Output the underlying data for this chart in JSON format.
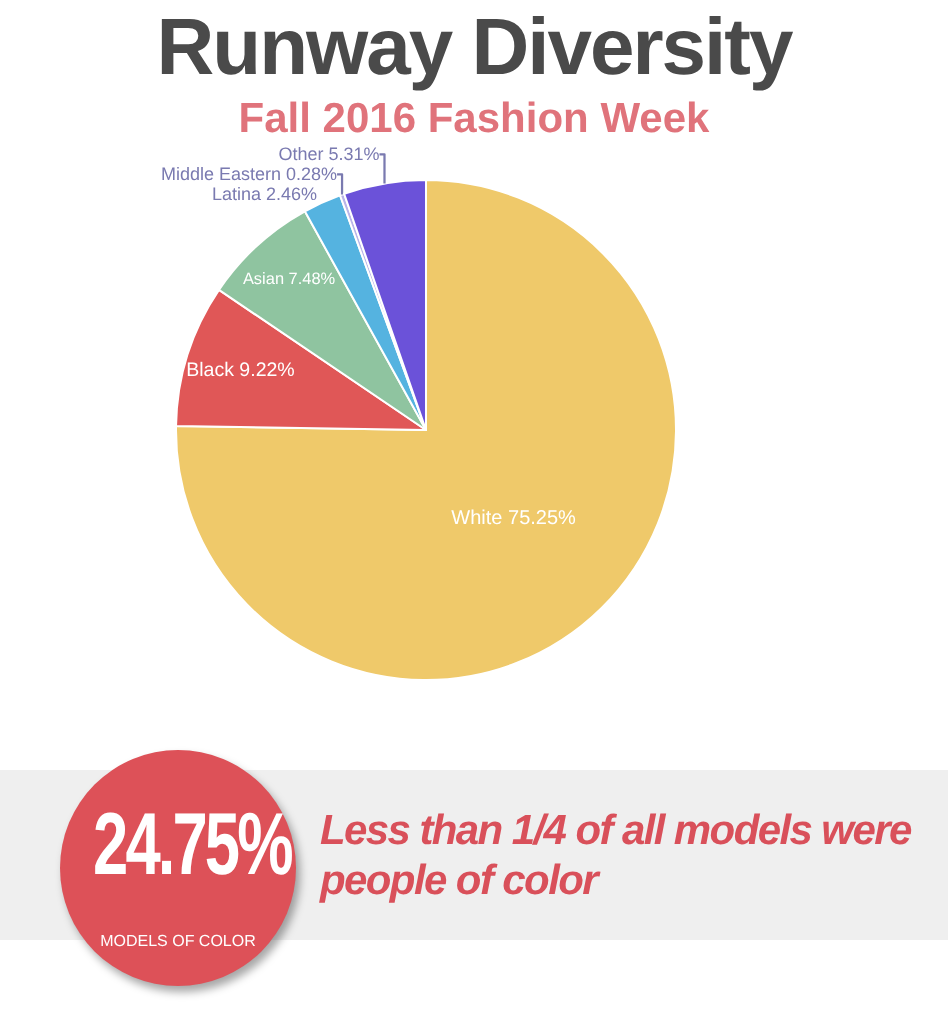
{
  "chart_data": {
    "type": "pie",
    "title": "Runway Diversity",
    "subtitle": "Fall 2016 Fashion Week",
    "categories": [
      "White",
      "Black",
      "Asian",
      "Latina",
      "Middle Eastern",
      "Other"
    ],
    "values": [
      75.25,
      9.22,
      7.48,
      2.46,
      0.28,
      5.31
    ],
    "colors": [
      "#efc96a",
      "#e05757",
      "#8fc4a0",
      "#55b3e0",
      "#b9b4e8",
      "#6b52d9"
    ],
    "value_labels": [
      "75.25%",
      "9.22%",
      "7.48%",
      "2.46%",
      "0.28%",
      "5.31%"
    ],
    "annotations": [
      "24.75%",
      "MODELS OF COLOR",
      "Less than 1/4 of all models were people of color"
    ]
  }
}
